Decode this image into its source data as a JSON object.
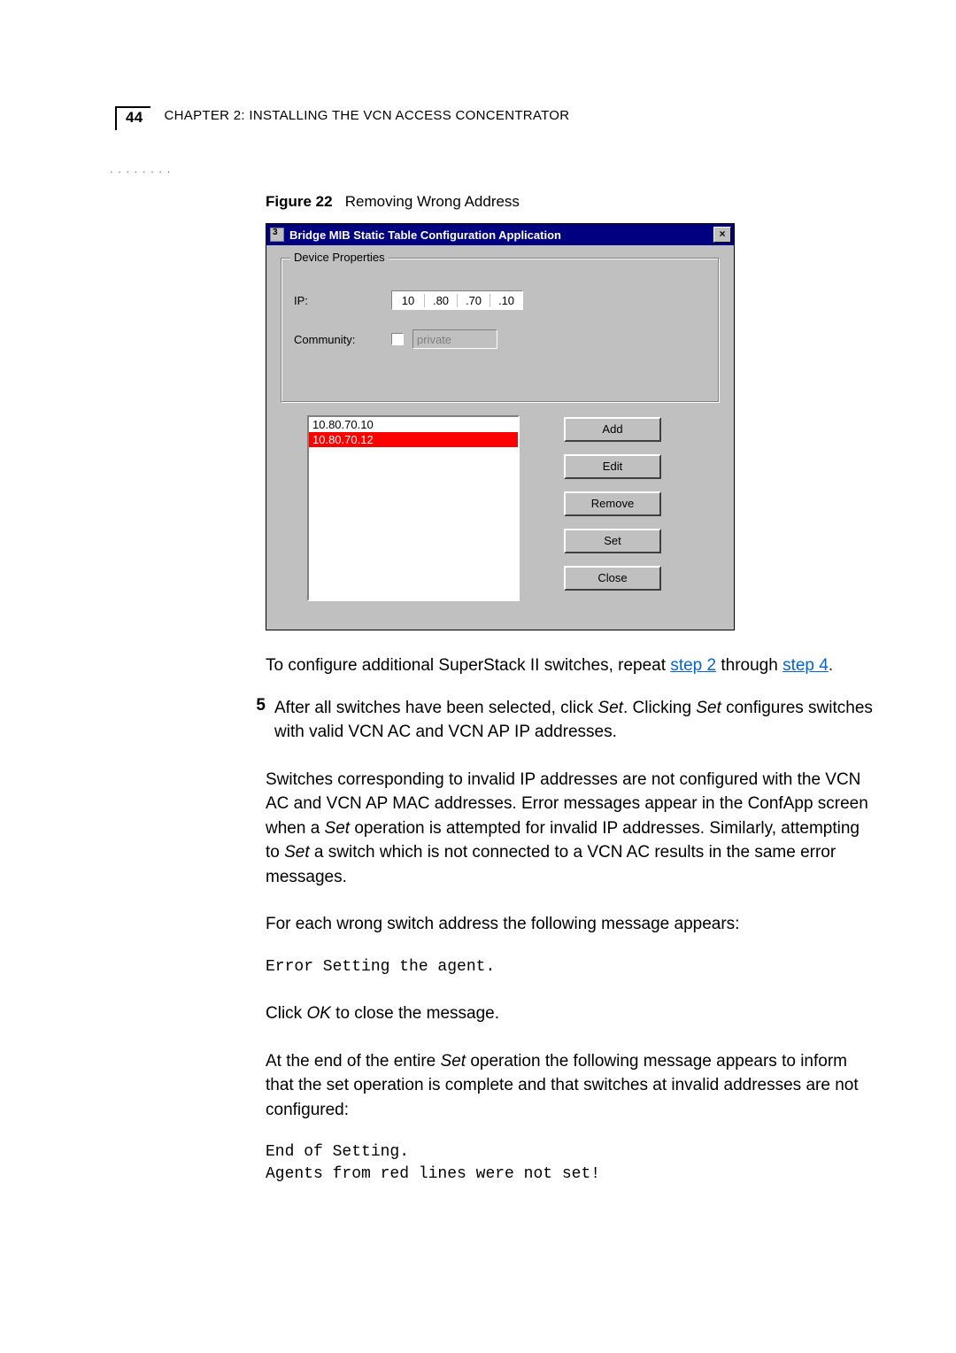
{
  "header": {
    "page_no": "44",
    "chapter_prefix": "C",
    "chapter_word_rest": "HAPTER",
    "chapter_num": " 2: I",
    "title_rest": "NSTALLING THE",
    "vcn": " VCN A",
    "tail": "CCESS",
    "conc_c": " C",
    "conc_rest": "ONCENTRATOR"
  },
  "figure": {
    "label": "Figure 22",
    "caption": "Removing Wrong Address"
  },
  "dialog": {
    "title": "Bridge MIB Static Table Configuration Application",
    "close_glyph": "×",
    "group_legend": "Device Properties",
    "ip_label": "IP:",
    "ip_segments": [
      "10",
      ".80",
      ".70",
      ".10"
    ],
    "community_label": "Community:",
    "community_value": "private",
    "list_items": [
      "10.80.70.10",
      "10.80.70.12"
    ],
    "list_selected_index": 1,
    "buttons": [
      "Add",
      "Edit",
      "Remove",
      "Set",
      "Close"
    ]
  },
  "para1_a": "To configure additional SuperStack II switches, repeat ",
  "para1_link1": "step 2",
  "para1_b": " through ",
  "para1_link2": "step 4",
  "para1_c": ".",
  "step5_num": "5",
  "step5_text_a": "After all switches have been selected, click ",
  "step5_set": "Set",
  "step5_text_b": ". Clicking ",
  "step5_set2": "Set",
  "step5_text_c": " configures switches with valid VCN AC and VCN AP IP addresses.",
  "para2_a": "Switches corresponding to invalid IP addresses are not configured with the VCN AC and VCN AP MAC addresses. Error messages appear in the ConfApp screen when a ",
  "para2_set": "Set",
  "para2_b": " operation is attempted for invalid IP addresses. Similarly, attempting to ",
  "para2_set2": "Set",
  "para2_c": " a switch which is not connected to a VCN AC results in the same error messages.",
  "para3": "For each wrong switch address the following message appears:",
  "code1": "Error Setting the agent.",
  "para4_a": "Click ",
  "para4_ok": "OK",
  "para4_b": " to close the message.",
  "para5_a": "At the end of the entire ",
  "para5_set": "Set",
  "para5_b": " operation the following message appears to inform that the set operation is complete and that switches at invalid addresses are not configured:",
  "code2": "End of Setting.\nAgents from red lines were not set!",
  "colors": {
    "link": "#0066cc",
    "sel_bg": "#ff0000",
    "win_bg": "#c0c0c0",
    "title_bg": "#000080"
  }
}
